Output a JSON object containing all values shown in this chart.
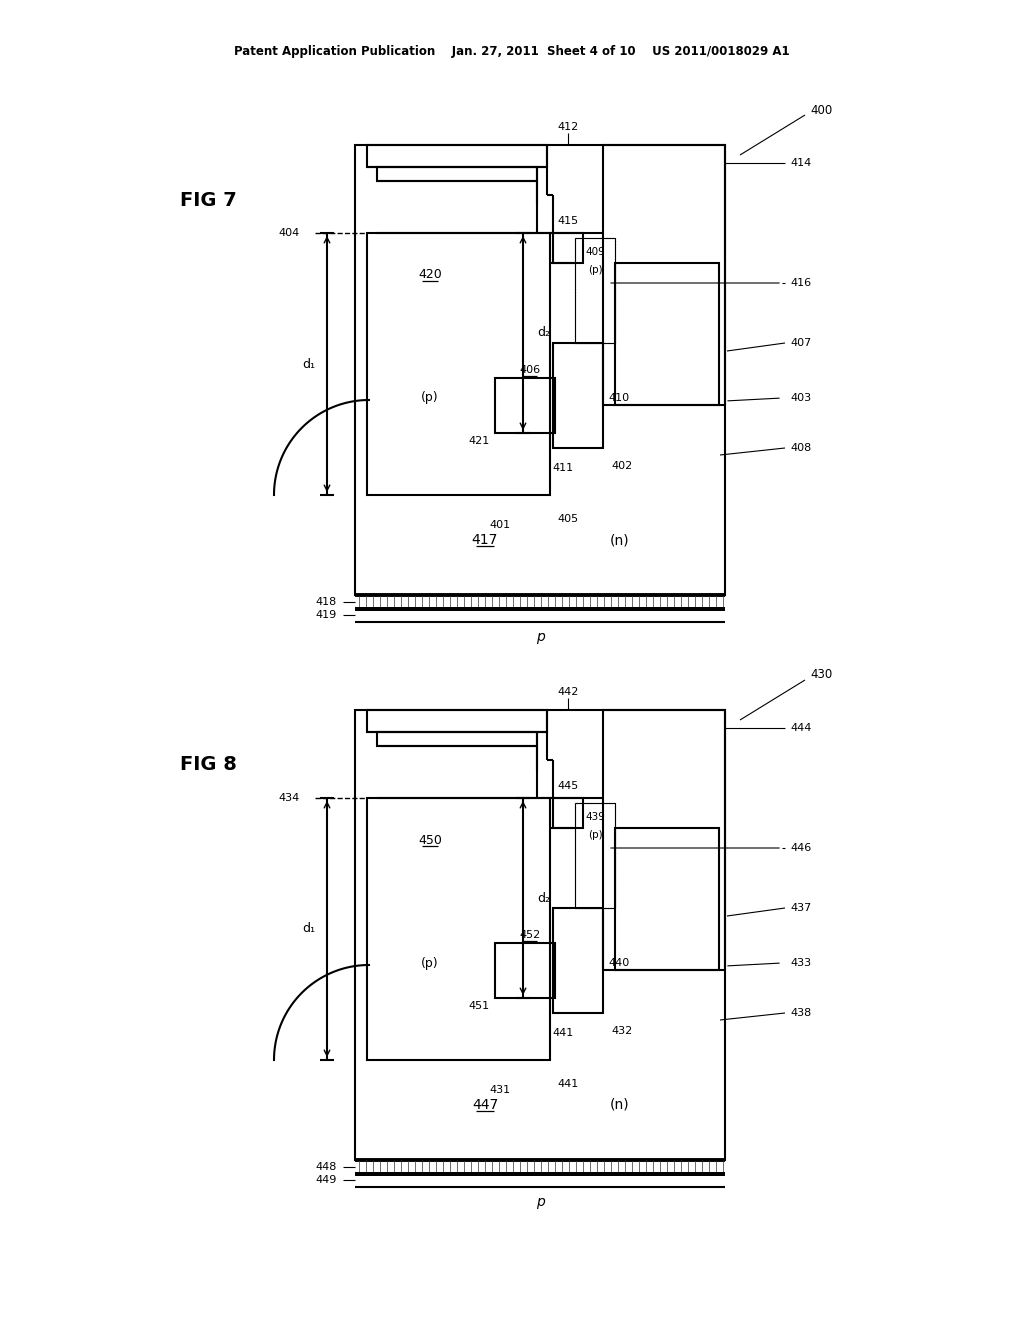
{
  "background_color": "#ffffff",
  "header": "Patent Application Publication    Jan. 27, 2011  Sheet 4 of 10    US 2011/0018029 A1",
  "fig7_title": "FIG 7",
  "fig8_title": "FIG 8"
}
